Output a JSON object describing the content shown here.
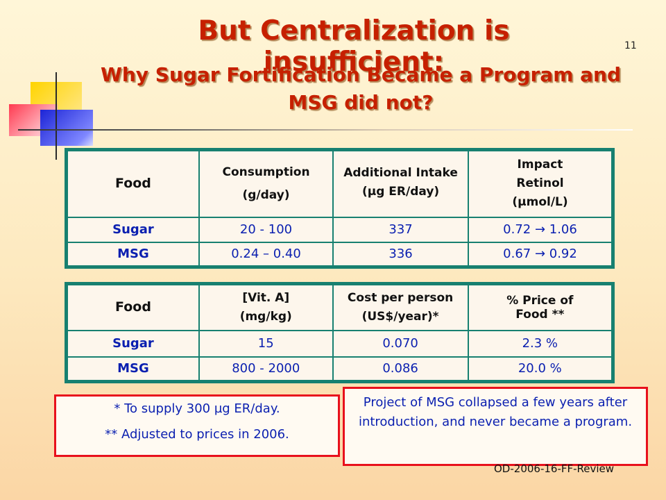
{
  "slide": {
    "number": "11",
    "title_line1": "But Centralization is insufficient:",
    "title_line2": "Why Sugar Fortification Became a Program and",
    "title_line3": "MSG did not?",
    "footer": "OD-2006-16-FF-Review"
  },
  "table1": {
    "headers": [
      [
        "Food"
      ],
      [
        "Consumption",
        "(g/day)"
      ],
      [
        "Additional Intake",
        "(µg ER/day)"
      ],
      [
        "Impact",
        "Retinol",
        "(µmol/L)"
      ]
    ],
    "rows": [
      [
        "Sugar",
        "20 - 100",
        "337",
        "0.72 → 1.06"
      ],
      [
        "MSG",
        "0.24 – 0.40",
        "336",
        "0.67 → 0.92"
      ]
    ]
  },
  "table2": {
    "headers": [
      [
        "Food"
      ],
      [
        "[Vit. A]",
        "(mg/kg)"
      ],
      [
        "Cost per person",
        "(US$/year)*"
      ],
      [
        "% Price of Food **"
      ]
    ],
    "rows": [
      [
        "Sugar",
        "15",
        "0.070",
        "2.3 %"
      ],
      [
        "MSG",
        "800 - 2000",
        "0.086",
        "20.0 %"
      ]
    ]
  },
  "notes": {
    "line1": "* To supply 300 µg ER/day.",
    "line2": "** Adjusted to prices in 2006."
  },
  "project_note": "Project of MSG collapsed a few years after introduction, and never became a program.",
  "colors": {
    "title": "#c62000",
    "table_border": "#178070",
    "data_text": "#0a1fb0",
    "note_border": "#e8101c"
  }
}
